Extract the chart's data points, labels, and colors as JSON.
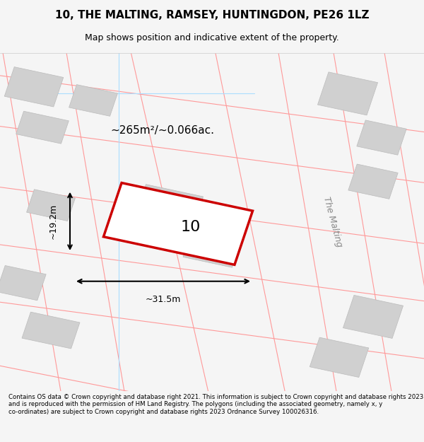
{
  "title_line1": "10, THE MALTING, RAMSEY, HUNTINGDON, PE26 1LZ",
  "title_line2": "Map shows position and indicative extent of the property.",
  "area_text": "~265m²/~0.066ac.",
  "width_label": "~31.5m",
  "height_label": "~19.2m",
  "plot_label": "10",
  "road_label": "The Malting",
  "footer_text": "Contains OS data © Crown copyright and database right 2021. This information is subject to Crown copyright and database rights 2023 and is reproduced with the permission of HM Land Registry. The polygons (including the associated geometry, namely x, y co-ordinates) are subject to Crown copyright and database rights 2023 Ordnance Survey 100026316.",
  "bg_color": "#f5f5f5",
  "map_bg": "#ffffff",
  "plot_fill": "#e8e8e8",
  "plot_border": "#cc0000",
  "road_line_color": "#ff9999",
  "blue_line_color": "#aaddff",
  "building_fill": "#d0d0d0",
  "building_edge": "#bbbbbb",
  "dim_line_color": "#000000"
}
